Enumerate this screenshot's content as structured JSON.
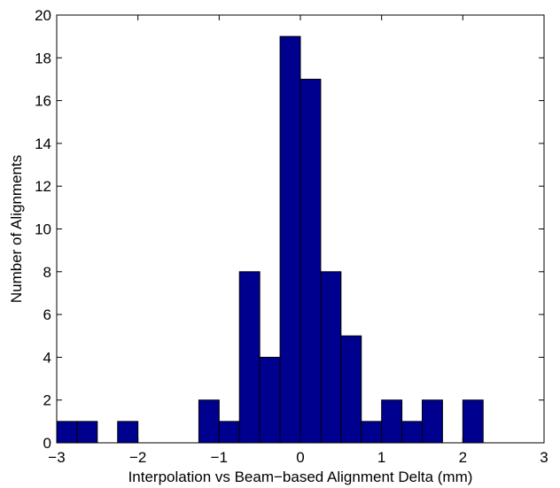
{
  "chart_data": {
    "type": "bar",
    "xlabel": "Interpolation vs Beam−based Alignment Delta (mm)",
    "ylabel": "Number of Alignments",
    "xlim": [
      -3,
      3
    ],
    "ylim": [
      0,
      20
    ],
    "bin_width": 0.25,
    "bins": [
      {
        "x0": -3.0,
        "x1": -2.75,
        "count": 1
      },
      {
        "x0": -2.75,
        "x1": -2.5,
        "count": 1
      },
      {
        "x0": -2.25,
        "x1": -2.0,
        "count": 1
      },
      {
        "x0": -1.25,
        "x1": -1.0,
        "count": 2
      },
      {
        "x0": -1.0,
        "x1": -0.75,
        "count": 1
      },
      {
        "x0": -0.75,
        "x1": -0.5,
        "count": 8
      },
      {
        "x0": -0.5,
        "x1": -0.25,
        "count": 4
      },
      {
        "x0": -0.25,
        "x1": 0.0,
        "count": 19
      },
      {
        "x0": 0.0,
        "x1": 0.25,
        "count": 17
      },
      {
        "x0": 0.25,
        "x1": 0.5,
        "count": 8
      },
      {
        "x0": 0.5,
        "x1": 0.75,
        "count": 5
      },
      {
        "x0": 0.75,
        "x1": 1.0,
        "count": 1
      },
      {
        "x0": 1.0,
        "x1": 1.25,
        "count": 2
      },
      {
        "x0": 1.25,
        "x1": 1.5,
        "count": 1
      },
      {
        "x0": 1.5,
        "x1": 1.75,
        "count": 2
      },
      {
        "x0": 2.0,
        "x1": 2.25,
        "count": 2
      }
    ],
    "xticks": [
      -3,
      -2,
      -1,
      0,
      1,
      2,
      3
    ],
    "xtick_labels": [
      "−3",
      "−2",
      "−1",
      "0",
      "1",
      "2",
      "3"
    ],
    "yticks": [
      0,
      2,
      4,
      6,
      8,
      10,
      12,
      14,
      16,
      18,
      20
    ],
    "ytick_labels": [
      "0",
      "2",
      "4",
      "6",
      "8",
      "10",
      "12",
      "14",
      "16",
      "18",
      "20"
    ],
    "grid": false,
    "bar_color": "#00008f",
    "edge_color": "#000000"
  }
}
